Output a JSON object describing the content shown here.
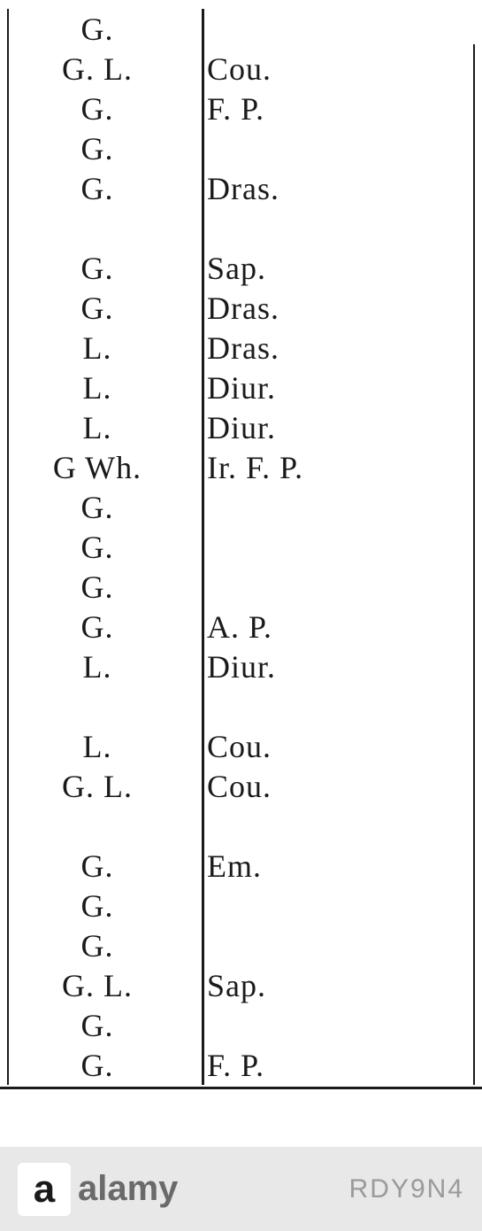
{
  "table": {
    "rows": [
      {
        "col1": "G.",
        "col2": ""
      },
      {
        "col1": "G.   L.",
        "col2": "Cou."
      },
      {
        "col1": "G.",
        "col2": "F. P."
      },
      {
        "col1": "G.",
        "col2": ""
      },
      {
        "col1": "G.",
        "col2": "Dras."
      },
      {
        "col1": "",
        "col2": "",
        "spacer": true
      },
      {
        "col1": "G.",
        "col2": "Sap."
      },
      {
        "col1": "G.",
        "col2": "Dras."
      },
      {
        "col1": "L.",
        "col2": "Dras."
      },
      {
        "col1": "L.",
        "col2": "Diur."
      },
      {
        "col1": "L.",
        "col2": "Diur."
      },
      {
        "col1": "G   Wh.",
        "col2": "Ir. F. P."
      },
      {
        "col1": "G.",
        "col2": ""
      },
      {
        "col1": "G.",
        "col2": ""
      },
      {
        "col1": "G.",
        "col2": ""
      },
      {
        "col1": "G.",
        "col2": "A. P."
      },
      {
        "col1": "L.",
        "col2": "Diur."
      },
      {
        "col1": "",
        "col2": "",
        "spacer": true
      },
      {
        "col1": "L.",
        "col2": "Cou."
      },
      {
        "col1": "G.   L.",
        "col2": "Cou."
      },
      {
        "col1": "",
        "col2": "",
        "spacer": true
      },
      {
        "col1": "G.",
        "col2": "Em."
      },
      {
        "col1": "G.",
        "col2": ""
      },
      {
        "col1": "G.",
        "col2": ""
      },
      {
        "col1": "G.   L.",
        "col2": "Sap."
      },
      {
        "col1": "G.",
        "col2": ""
      },
      {
        "col1": "G.",
        "col2": "F. P."
      }
    ]
  },
  "watermark": {
    "logo_letter": "a",
    "logo_text": "alamy",
    "image_id": "RDY9N4"
  },
  "styling": {
    "background_color": "#ffffff",
    "text_color": "#1a1a1a",
    "line_color": "#1a1a1a",
    "watermark_bg": "#e8e8e8",
    "watermark_text_color": "#6a6a6a",
    "id_text_color": "#9a9a9a",
    "font_size": 36,
    "font_family": "Times New Roman"
  }
}
